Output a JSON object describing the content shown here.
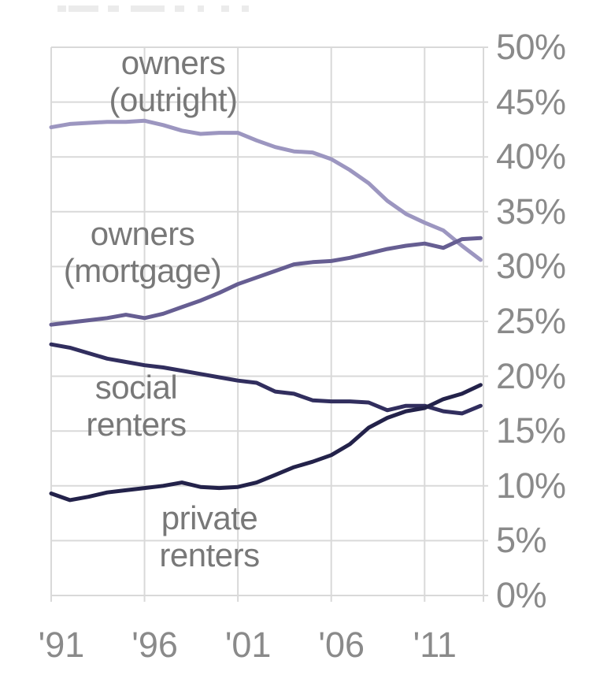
{
  "chart_data": {
    "type": "line",
    "x": [
      1991,
      1992,
      1993,
      1994,
      1995,
      1996,
      1997,
      1998,
      1999,
      2000,
      2001,
      2002,
      2003,
      2004,
      2005,
      2006,
      2007,
      2008,
      2009,
      2010,
      2011,
      2012,
      2013,
      2014
    ],
    "xlim": [
      1991,
      2014.15
    ],
    "ylim": [
      0,
      50
    ],
    "grid": true,
    "legend_position": "inline-labels",
    "x_tick_years": [
      1991,
      1996,
      2001,
      2006,
      2011
    ],
    "x_tick_labels": [
      "'91",
      "'96",
      "'01",
      "'06",
      "'11"
    ],
    "y_tick_values": [
      50,
      45,
      40,
      35,
      30,
      25,
      20,
      15,
      10,
      5,
      0
    ],
    "y_tick_labels": [
      "50%",
      "45%",
      "40%",
      "35%",
      "30%",
      "25%",
      "20%",
      "15%",
      "10%",
      "5%",
      "0%"
    ],
    "series": [
      {
        "name": "owners (outright)",
        "label_lines": [
          "owners",
          "(outright)"
        ],
        "color": "#9c96c0",
        "values": [
          42.7,
          43.0,
          43.1,
          43.2,
          43.2,
          43.3,
          42.9,
          42.4,
          42.1,
          42.2,
          42.2,
          41.5,
          40.9,
          40.5,
          40.4,
          39.8,
          38.8,
          37.6,
          36.0,
          34.8,
          34.0,
          33.3,
          31.9,
          30.6
        ]
      },
      {
        "name": "owners (mortgage)",
        "label_lines": [
          "owners",
          "(mortgage)"
        ],
        "color": "#665e92",
        "values": [
          24.7,
          24.9,
          25.1,
          25.3,
          25.6,
          25.3,
          25.7,
          26.3,
          26.9,
          27.6,
          28.4,
          29.0,
          29.6,
          30.2,
          30.4,
          30.5,
          30.8,
          31.2,
          31.6,
          31.9,
          32.1,
          31.7,
          32.5,
          32.6
        ]
      },
      {
        "name": "social renters",
        "label_lines": [
          "social",
          "renters"
        ],
        "color": "#312e5e",
        "values": [
          22.9,
          22.6,
          22.1,
          21.6,
          21.3,
          21.0,
          20.8,
          20.5,
          20.2,
          19.9,
          19.6,
          19.4,
          18.6,
          18.4,
          17.8,
          17.7,
          17.7,
          17.6,
          16.9,
          17.3,
          17.3,
          16.8,
          16.6,
          17.3
        ]
      },
      {
        "name": "private renters",
        "label_lines": [
          "private",
          "renters"
        ],
        "color": "#23224a",
        "values": [
          9.3,
          8.7,
          9.0,
          9.4,
          9.6,
          9.8,
          10.0,
          10.3,
          9.9,
          9.8,
          9.9,
          10.3,
          11.0,
          11.7,
          12.2,
          12.8,
          13.8,
          15.3,
          16.2,
          16.8,
          17.1,
          17.9,
          18.4,
          19.2
        ]
      }
    ]
  },
  "colors": {
    "background": "#ffffff",
    "gridline": "#d9d9d9",
    "axis_text": "#8a8a8a",
    "label_text": "#787878"
  }
}
